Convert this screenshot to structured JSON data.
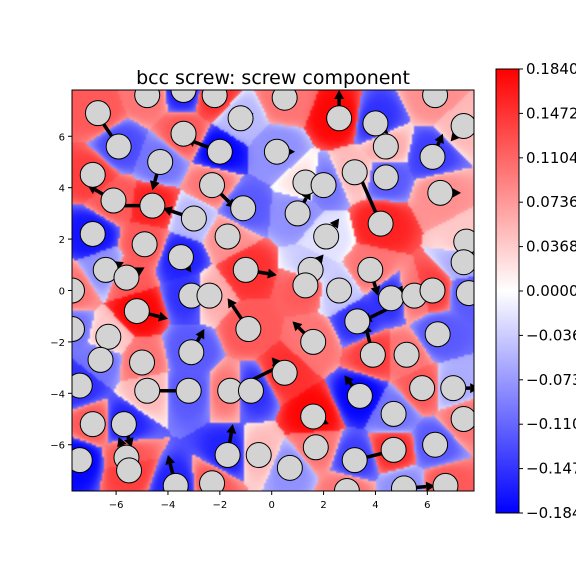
{
  "chart_data": {
    "type": "heatmap",
    "title": "bcc screw: screw component",
    "xlabel": "",
    "ylabel": "",
    "xlim": [
      -7.7,
      7.8
    ],
    "ylim": [
      -7.8,
      7.8
    ],
    "x_ticks": [
      -6,
      -4,
      -2,
      0,
      2,
      4,
      6
    ],
    "y_ticks": [
      -6,
      -4,
      -2,
      0,
      2,
      4,
      6
    ],
    "colorbar": {
      "colormap": "bwr",
      "range": [
        -0.184,
        0.184
      ],
      "ticks": [
        "−0.1840",
        "−0.1472",
        "−0.1104",
        "−0.0736",
        "−0.0368",
        "0.0000",
        "0.0368",
        "0.0736",
        "0.1104",
        "0.1472",
        "0.1840"
      ],
      "tick_values": [
        -0.184,
        -0.1472,
        -0.1104,
        -0.0736,
        -0.0368,
        0.0,
        0.0368,
        0.0736,
        0.1104,
        0.1472,
        0.184
      ]
    },
    "atoms": [
      {
        "x": -6.7,
        "y": 6.9,
        "v": 0.12,
        "dx": 0.0,
        "dy": 0.0
      },
      {
        "x": -5.9,
        "y": 5.6,
        "v": -0.13,
        "dx": -0.8,
        "dy": 1.2
      },
      {
        "x": -4.8,
        "y": 7.6,
        "v": 0.1,
        "dx": 0.0,
        "dy": 0.0
      },
      {
        "x": -3.4,
        "y": 7.8,
        "v": -0.16,
        "dx": 0.0,
        "dy": 0.0
      },
      {
        "x": -2.2,
        "y": 7.6,
        "v": 0.15,
        "dx": 0.0,
        "dy": 0.0
      },
      {
        "x": -1.2,
        "y": 6.7,
        "v": -0.05,
        "dx": 0.5,
        "dy": 0.2
      },
      {
        "x": 0.5,
        "y": 7.5,
        "v": 0.1,
        "dx": 0.0,
        "dy": 0.0
      },
      {
        "x": 2.6,
        "y": 6.7,
        "v": 0.18,
        "dx": 0.0,
        "dy": 1.1
      },
      {
        "x": 4.0,
        "y": 6.5,
        "v": -0.15,
        "dx": 0.5,
        "dy": -0.4
      },
      {
        "x": 6.3,
        "y": 7.6,
        "v": 0.08,
        "dx": 0.0,
        "dy": 0.0
      },
      {
        "x": 7.4,
        "y": 6.4,
        "v": 0.05,
        "dx": -0.5,
        "dy": -0.6
      },
      {
        "x": -4.3,
        "y": 5.0,
        "v": -0.1,
        "dx": -0.3,
        "dy": -1.1
      },
      {
        "x": -3.4,
        "y": 6.1,
        "v": 0.12,
        "dx": 0.0,
        "dy": 0.0
      },
      {
        "x": -2.0,
        "y": 5.4,
        "v": -0.18,
        "dx": -1.3,
        "dy": 0.5
      },
      {
        "x": 0.2,
        "y": 5.4,
        "v": -0.08,
        "dx": 0.7,
        "dy": 0.0
      },
      {
        "x": 4.4,
        "y": 5.6,
        "v": 0.06,
        "dx": 0.0,
        "dy": 0.0
      },
      {
        "x": 6.2,
        "y": 5.2,
        "v": -0.14,
        "dx": 0.4,
        "dy": 0.9
      },
      {
        "x": -6.9,
        "y": 4.5,
        "v": 0.14,
        "dx": 0.0,
        "dy": 0.0
      },
      {
        "x": -6.1,
        "y": 3.5,
        "v": 0.12,
        "dx": -1.0,
        "dy": 0.6
      },
      {
        "x": -4.6,
        "y": 3.3,
        "v": 0.16,
        "dx": -1.5,
        "dy": 0.0
      },
      {
        "x": -3.0,
        "y": 2.8,
        "v": -0.05,
        "dx": -1.2,
        "dy": 0.4
      },
      {
        "x": -2.3,
        "y": 4.1,
        "v": 0.1,
        "dx": 0.9,
        "dy": -0.9
      },
      {
        "x": -1.1,
        "y": 3.2,
        "v": -0.12,
        "dx": 0.0,
        "dy": 0.0
      },
      {
        "x": 1.3,
        "y": 4.2,
        "v": 0.02,
        "dx": 0.0,
        "dy": 0.0
      },
      {
        "x": 2.0,
        "y": 4.1,
        "v": -0.1,
        "dx": 0.0,
        "dy": 0.0
      },
      {
        "x": 3.2,
        "y": 4.6,
        "v": 0.05,
        "dx": 0.0,
        "dy": 0.0
      },
      {
        "x": 4.4,
        "y": 4.4,
        "v": -0.12,
        "dx": 0.0,
        "dy": 0.0
      },
      {
        "x": 6.5,
        "y": 3.8,
        "v": 0.08,
        "dx": 0.8,
        "dy": 0.0
      },
      {
        "x": 1.0,
        "y": 3.0,
        "v": -0.08,
        "dx": 0.5,
        "dy": 0.9
      },
      {
        "x": 4.2,
        "y": 2.6,
        "v": 0.16,
        "dx": -1.0,
        "dy": 2.3
      },
      {
        "x": -6.9,
        "y": 2.2,
        "v": -0.17,
        "dx": 0.0,
        "dy": 0.0
      },
      {
        "x": -4.9,
        "y": 1.8,
        "v": 0.12,
        "dx": 0.0,
        "dy": 0.0
      },
      {
        "x": -1.7,
        "y": 2.1,
        "v": 0.08,
        "dx": 0.0,
        "dy": 0.0
      },
      {
        "x": 2.1,
        "y": 2.1,
        "v": -0.02,
        "dx": 0.5,
        "dy": 0.7
      },
      {
        "x": 7.5,
        "y": 1.9,
        "v": 0.04,
        "dx": 0.0,
        "dy": 0.0
      },
      {
        "x": -6.4,
        "y": 0.8,
        "v": -0.08,
        "dx": 0.7,
        "dy": 0.3
      },
      {
        "x": -5.6,
        "y": 0.5,
        "v": 0.12,
        "dx": 0.7,
        "dy": 0.4
      },
      {
        "x": -3.5,
        "y": 1.3,
        "v": -0.16,
        "dx": 0.4,
        "dy": -0.6
      },
      {
        "x": -1.0,
        "y": 0.8,
        "v": 0.15,
        "dx": 1.2,
        "dy": -0.2
      },
      {
        "x": 1.5,
        "y": 0.8,
        "v": -0.04,
        "dx": 0.5,
        "dy": 0.6
      },
      {
        "x": 1.3,
        "y": 0.2,
        "v": 0.12,
        "dx": 0.0,
        "dy": 0.0
      },
      {
        "x": 3.8,
        "y": 0.8,
        "v": 0.1,
        "dx": 0.3,
        "dy": -1.0
      },
      {
        "x": 7.4,
        "y": 1.1,
        "v": -0.06,
        "dx": 0.0,
        "dy": 0.0
      },
      {
        "x": -7.7,
        "y": 0.0,
        "v": 0.1,
        "dx": 0.0,
        "dy": 0.0
      },
      {
        "x": -5.2,
        "y": -0.8,
        "v": 0.18,
        "dx": 1.2,
        "dy": -0.3
      },
      {
        "x": -3.1,
        "y": -0.2,
        "v": -0.15,
        "dx": 0.0,
        "dy": 0.0
      },
      {
        "x": -2.4,
        "y": -0.2,
        "v": 0.06,
        "dx": 0.0,
        "dy": 0.0
      },
      {
        "x": -0.9,
        "y": -1.5,
        "v": 0.12,
        "dx": -0.8,
        "dy": 1.2
      },
      {
        "x": 2.6,
        "y": 0.0,
        "v": -0.04,
        "dx": 0.0,
        "dy": 0.0
      },
      {
        "x": 4.6,
        "y": -0.3,
        "v": -0.15,
        "dx": 0.0,
        "dy": 0.0
      },
      {
        "x": 5.5,
        "y": -0.2,
        "v": 0.1,
        "dx": -2.0,
        "dy": -1.0
      },
      {
        "x": 6.2,
        "y": 0.0,
        "v": 0.14,
        "dx": -1.5,
        "dy": 0.0
      },
      {
        "x": 7.6,
        "y": -0.1,
        "v": -0.12,
        "dx": 0.0,
        "dy": 0.0
      },
      {
        "x": -7.7,
        "y": -1.5,
        "v": -0.1,
        "dx": 0.0,
        "dy": 0.0
      },
      {
        "x": -6.3,
        "y": -1.8,
        "v": 0.04,
        "dx": 0.0,
        "dy": 0.0
      },
      {
        "x": -6.6,
        "y": -2.7,
        "v": -0.1,
        "dx": 0.0,
        "dy": 0.0
      },
      {
        "x": -5.0,
        "y": -2.8,
        "v": 0.1,
        "dx": 0.0,
        "dy": 0.0
      },
      {
        "x": -3.1,
        "y": -2.4,
        "v": -0.12,
        "dx": 0.5,
        "dy": 0.9
      },
      {
        "x": 1.6,
        "y": -2.0,
        "v": 0.1,
        "dx": -0.8,
        "dy": 0.8
      },
      {
        "x": 3.3,
        "y": -1.2,
        "v": -0.15,
        "dx": 0.0,
        "dy": 0.0
      },
      {
        "x": 3.9,
        "y": -2.5,
        "v": 0.14,
        "dx": -0.3,
        "dy": 1.2
      },
      {
        "x": 5.2,
        "y": -2.5,
        "v": 0.1,
        "dx": 0.0,
        "dy": 0.0
      },
      {
        "x": 6.4,
        "y": -1.7,
        "v": -0.12,
        "dx": 0.0,
        "dy": 0.0
      },
      {
        "x": -7.4,
        "y": -3.7,
        "v": -0.15,
        "dx": 0.0,
        "dy": 0.0
      },
      {
        "x": -4.8,
        "y": -3.9,
        "v": 0.05,
        "dx": 1.5,
        "dy": 0.0
      },
      {
        "x": -3.2,
        "y": -3.9,
        "v": -0.12,
        "dx": -1.8,
        "dy": 0.0
      },
      {
        "x": -1.6,
        "y": -3.9,
        "v": 0.1,
        "dx": 2.0,
        "dy": 1.0
      },
      {
        "x": -0.8,
        "y": -3.9,
        "v": -0.15,
        "dx": 0.0,
        "dy": 0.0
      },
      {
        "x": 0.5,
        "y": -3.2,
        "v": 0.15,
        "dx": -0.5,
        "dy": 0.6
      },
      {
        "x": 3.4,
        "y": -4.1,
        "v": -0.18,
        "dx": -0.6,
        "dy": 0.8
      },
      {
        "x": 5.8,
        "y": -3.8,
        "v": 0.12,
        "dx": 0.0,
        "dy": 0.0
      },
      {
        "x": 7.0,
        "y": -3.8,
        "v": -0.06,
        "dx": 1.0,
        "dy": 0.0
      },
      {
        "x": -6.9,
        "y": -5.2,
        "v": 0.12,
        "dx": 0.0,
        "dy": 0.0
      },
      {
        "x": -5.7,
        "y": -5.2,
        "v": -0.16,
        "dx": 0.3,
        "dy": -0.9
      },
      {
        "x": 1.6,
        "y": -4.9,
        "v": 0.18,
        "dx": 0.6,
        "dy": -0.3
      },
      {
        "x": 4.7,
        "y": -4.8,
        "v": -0.1,
        "dx": 0.0,
        "dy": 0.0
      },
      {
        "x": 7.4,
        "y": -5.0,
        "v": 0.1,
        "dx": 0.0,
        "dy": 0.0
      },
      {
        "x": -7.4,
        "y": -6.6,
        "v": -0.18,
        "dx": 0.0,
        "dy": 0.0
      },
      {
        "x": -5.6,
        "y": -6.5,
        "v": 0.12,
        "dx": -0.3,
        "dy": 0.8
      },
      {
        "x": -1.7,
        "y": -6.4,
        "v": -0.16,
        "dx": 0.2,
        "dy": 1.2
      },
      {
        "x": -0.5,
        "y": -6.4,
        "v": 0.05,
        "dx": 0.0,
        "dy": 0.0
      },
      {
        "x": 1.7,
        "y": -6.1,
        "v": 0.1,
        "dx": 0.0,
        "dy": 0.0
      },
      {
        "x": 3.2,
        "y": -6.6,
        "v": -0.14,
        "dx": 2.0,
        "dy": 0.5
      },
      {
        "x": 4.7,
        "y": -6.2,
        "v": 0.15,
        "dx": 0.0,
        "dy": 0.0
      },
      {
        "x": 6.3,
        "y": -6.0,
        "v": -0.12,
        "dx": 0.0,
        "dy": 0.0
      },
      {
        "x": -5.5,
        "y": -7.0,
        "v": 0.14,
        "dx": 0.0,
        "dy": 0.0
      },
      {
        "x": -3.7,
        "y": -7.6,
        "v": -0.16,
        "dx": -0.3,
        "dy": 1.2
      },
      {
        "x": -2.3,
        "y": -7.5,
        "v": 0.12,
        "dx": 0.0,
        "dy": 0.0
      },
      {
        "x": 0.7,
        "y": -6.9,
        "v": -0.08,
        "dx": 0.0,
        "dy": 0.0
      },
      {
        "x": 2.9,
        "y": -7.8,
        "v": 0.1,
        "dx": 0.0,
        "dy": 0.0
      },
      {
        "x": 5.1,
        "y": -7.7,
        "v": -0.08,
        "dx": 1.2,
        "dy": 0.1
      },
      {
        "x": 6.7,
        "y": -7.6,
        "v": 0.12,
        "dx": 0.0,
        "dy": 0.0
      }
    ]
  }
}
